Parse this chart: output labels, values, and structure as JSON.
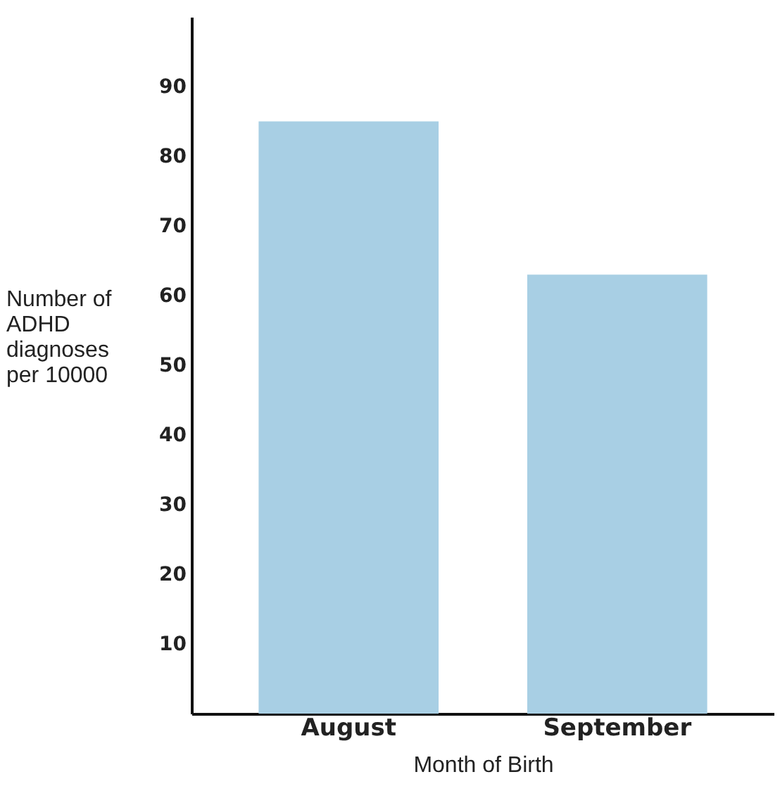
{
  "chart_data": {
    "type": "bar",
    "xlabel": "Month of Birth",
    "ylabel": "Number of ADHD diagnoses per 10000",
    "categories": [
      "August",
      "September"
    ],
    "values": [
      85,
      63
    ],
    "color": "#a8cfe4",
    "ylim": [
      0,
      100
    ],
    "yticks": [
      10,
      20,
      30,
      40,
      50,
      60,
      70,
      80,
      90
    ],
    "grid": false
  }
}
